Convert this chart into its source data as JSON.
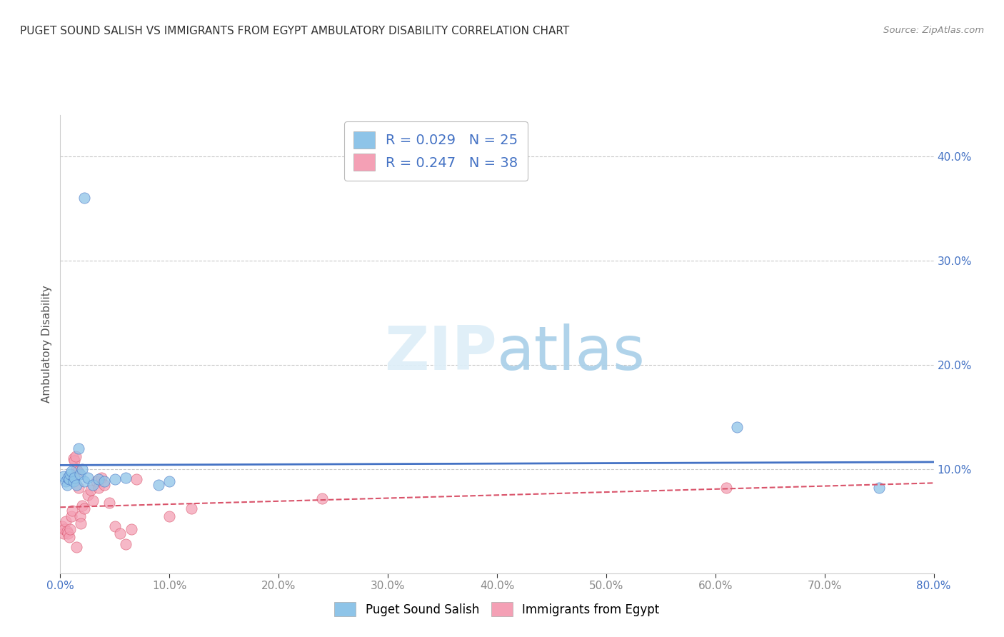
{
  "title": "PUGET SOUND SALISH VS IMMIGRANTS FROM EGYPT AMBULATORY DISABILITY CORRELATION CHART",
  "source": "Source: ZipAtlas.com",
  "ylabel": "Ambulatory Disability",
  "legend_label1": "Puget Sound Salish",
  "legend_label2": "Immigrants from Egypt",
  "R1": 0.029,
  "N1": 25,
  "R2": 0.247,
  "N2": 38,
  "xlim": [
    0.0,
    0.8
  ],
  "ylim": [
    0.0,
    0.44
  ],
  "yticks": [
    0.1,
    0.2,
    0.3,
    0.4
  ],
  "xticks": [
    0.0,
    0.1,
    0.2,
    0.3,
    0.4,
    0.5,
    0.6,
    0.7,
    0.8
  ],
  "color_blue": "#8ec4e8",
  "color_pink": "#f4a0b5",
  "trend_blue": "#4472c4",
  "trend_pink": "#d9536a",
  "tick_color": "#4472c4",
  "background": "#ffffff",
  "grid_color": "#bbbbbb",
  "blue_x": [
    0.022,
    0.003,
    0.005,
    0.006,
    0.007,
    0.008,
    0.009,
    0.01,
    0.012,
    0.013,
    0.015,
    0.017,
    0.018,
    0.02,
    0.022,
    0.025,
    0.03,
    0.035,
    0.04,
    0.05,
    0.06,
    0.09,
    0.1,
    0.62,
    0.75
  ],
  "blue_y": [
    0.36,
    0.093,
    0.088,
    0.085,
    0.092,
    0.09,
    0.095,
    0.098,
    0.088,
    0.092,
    0.085,
    0.12,
    0.095,
    0.1,
    0.088,
    0.092,
    0.085,
    0.09,
    0.088,
    0.09,
    0.092,
    0.085,
    0.088,
    0.14,
    0.082
  ],
  "pink_x": [
    0.002,
    0.003,
    0.004,
    0.005,
    0.006,
    0.007,
    0.008,
    0.009,
    0.01,
    0.011,
    0.012,
    0.013,
    0.014,
    0.015,
    0.016,
    0.017,
    0.018,
    0.019,
    0.02,
    0.022,
    0.025,
    0.028,
    0.03,
    0.033,
    0.035,
    0.038,
    0.04,
    0.045,
    0.05,
    0.055,
    0.06,
    0.065,
    0.07,
    0.1,
    0.12,
    0.24,
    0.61,
    0.015
  ],
  "pink_y": [
    0.045,
    0.038,
    0.042,
    0.05,
    0.04,
    0.038,
    0.035,
    0.042,
    0.055,
    0.06,
    0.11,
    0.108,
    0.112,
    0.1,
    0.098,
    0.082,
    0.055,
    0.048,
    0.065,
    0.062,
    0.075,
    0.08,
    0.07,
    0.088,
    0.082,
    0.092,
    0.085,
    0.068,
    0.045,
    0.038,
    0.028,
    0.042,
    0.09,
    0.055,
    0.062,
    0.072,
    0.082,
    0.025
  ]
}
